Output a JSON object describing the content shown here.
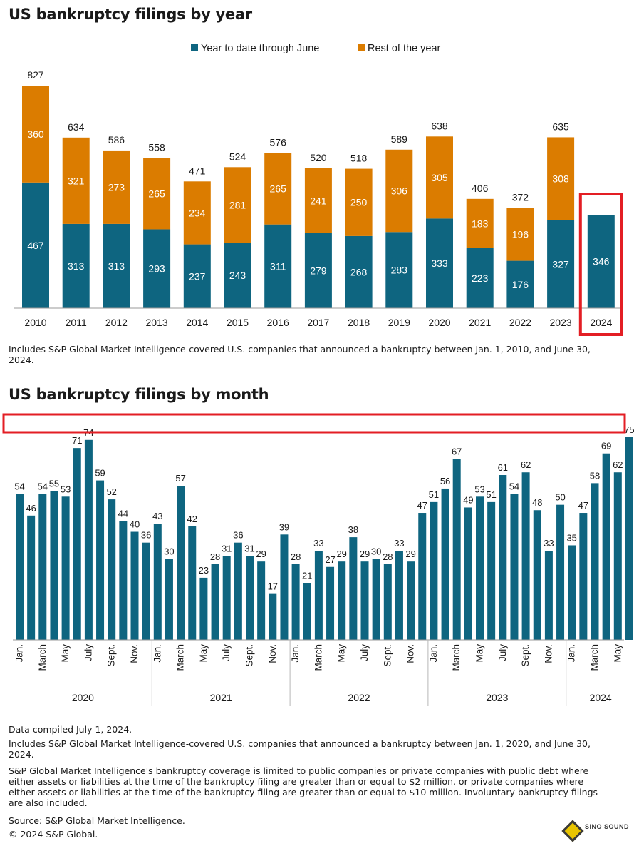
{
  "chart_data": [
    {
      "type": "bar",
      "stacked": true,
      "title": "US bankruptcy filings by year",
      "categories": [
        "2010",
        "2011",
        "2012",
        "2013",
        "2014",
        "2015",
        "2016",
        "2017",
        "2018",
        "2019",
        "2020",
        "2021",
        "2022",
        "2023",
        "2024"
      ],
      "series": [
        {
          "name": "Year to date through June",
          "color": "#0e6580",
          "values": [
            467,
            313,
            313,
            293,
            237,
            243,
            311,
            279,
            268,
            283,
            333,
            223,
            176,
            327,
            346
          ]
        },
        {
          "name": "Rest of the year",
          "color": "#db7c00",
          "values": [
            360,
            321,
            273,
            265,
            234,
            281,
            265,
            241,
            250,
            306,
            305,
            183,
            196,
            308,
            null
          ]
        }
      ],
      "totals": [
        827,
        634,
        586,
        558,
        471,
        524,
        576,
        520,
        518,
        589,
        638,
        406,
        372,
        635,
        null
      ],
      "legend": "top-center",
      "highlight": "2024",
      "highlight_color": "#e31e24",
      "note": "Includes S&P Global Market Intelligence-covered U.S. companies that announced a bankruptcy between Jan. 1, 2010, and June 30, 2024."
    },
    {
      "type": "bar",
      "title": "US bankruptcy filings by month",
      "color": "#0e6580",
      "highlight_color": "#e31e24",
      "years": [
        "2020",
        "2021",
        "2022",
        "2023",
        "2024"
      ],
      "month_tick_labels": [
        "Jan.",
        "",
        "March",
        "",
        "May",
        "",
        "July",
        "",
        "Sept.",
        "",
        "Nov.",
        ""
      ],
      "values": [
        54,
        46,
        54,
        55,
        53,
        71,
        74,
        59,
        52,
        44,
        40,
        36,
        43,
        30,
        57,
        42,
        23,
        28,
        31,
        36,
        31,
        29,
        17,
        39,
        28,
        21,
        33,
        27,
        29,
        38,
        29,
        30,
        28,
        33,
        29,
        47,
        51,
        56,
        67,
        49,
        53,
        51,
        61,
        54,
        62,
        48,
        33,
        50,
        35,
        47,
        58,
        69,
        62,
        75
      ],
      "notes": [
        "Data compiled July 1, 2024.",
        "Includes S&P Global Market Intelligence-covered U.S. companies that announced a bankruptcy between Jan. 1, 2020, and June 30, 2024.",
        "S&P Global Market Intelligence's bankruptcy coverage is limited to public companies or private companies with public debt where either assets or liabilities at the time of the bankruptcy filing are greater than or equal to $2 million, or private companies where either assets or liabilities at the time of the bankruptcy filing are greater than or equal to $10 million. Involuntary bankruptcy filings are also included.",
        "Source: S&P Global Market Intelligence.",
        "© 2024 S&P Global."
      ]
    }
  ],
  "watermark": "SINO SOUND"
}
